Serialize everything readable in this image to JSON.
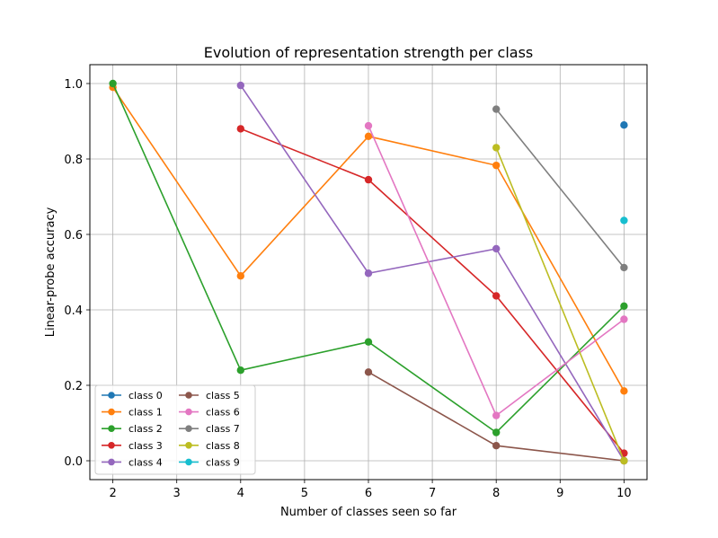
{
  "chart_data": {
    "type": "line",
    "title": "Evolution of representation strength per class",
    "xlabel": "Number of classes seen so far",
    "ylabel": "Linear-probe accuracy",
    "xlim": [
      1.64,
      10.36
    ],
    "ylim": [
      -0.05,
      1.05
    ],
    "xticks": [
      2,
      3,
      4,
      5,
      6,
      7,
      8,
      9,
      10
    ],
    "yticks": [
      0.0,
      0.2,
      0.4,
      0.6,
      0.8,
      1.0
    ],
    "ytick_labels": [
      "0.0",
      "0.2",
      "0.4",
      "0.6",
      "0.8",
      "1.0"
    ],
    "grid": true,
    "legend_position": "lower-left",
    "legend_columns": 2,
    "series": [
      {
        "name": "class 0",
        "color": "#1f77b4",
        "points": [
          [
            10,
            0.89
          ]
        ]
      },
      {
        "name": "class 1",
        "color": "#ff7f0e",
        "points": [
          [
            2,
            0.99
          ],
          [
            4,
            0.49
          ],
          [
            6,
            0.86
          ],
          [
            8,
            0.783
          ],
          [
            10,
            0.185
          ]
        ]
      },
      {
        "name": "class 2",
        "color": "#2ca02c",
        "points": [
          [
            2,
            1.0
          ],
          [
            4,
            0.24
          ],
          [
            6,
            0.315
          ],
          [
            8,
            0.075
          ],
          [
            10,
            0.41
          ]
        ]
      },
      {
        "name": "class 3",
        "color": "#d62728",
        "points": [
          [
            4,
            0.88
          ],
          [
            6,
            0.745
          ],
          [
            8,
            0.437
          ],
          [
            10,
            0.02
          ]
        ]
      },
      {
        "name": "class 4",
        "color": "#9467bd",
        "points": [
          [
            4,
            0.995
          ],
          [
            6,
            0.497
          ],
          [
            8,
            0.562
          ],
          [
            10,
            0.0
          ]
        ]
      },
      {
        "name": "class 5",
        "color": "#8c564b",
        "points": [
          [
            6,
            0.235
          ],
          [
            8,
            0.04
          ],
          [
            10,
            0.0
          ]
        ]
      },
      {
        "name": "class 6",
        "color": "#e377c2",
        "points": [
          [
            6,
            0.888
          ],
          [
            8,
            0.12
          ],
          [
            10,
            0.375
          ]
        ]
      },
      {
        "name": "class 7",
        "color": "#7f7f7f",
        "points": [
          [
            8,
            0.932
          ],
          [
            10,
            0.512
          ]
        ]
      },
      {
        "name": "class 8",
        "color": "#bcbd22",
        "points": [
          [
            8,
            0.83
          ],
          [
            10,
            0.0
          ]
        ]
      },
      {
        "name": "class 9",
        "color": "#17becf",
        "points": [
          [
            10,
            0.637
          ]
        ]
      }
    ]
  }
}
